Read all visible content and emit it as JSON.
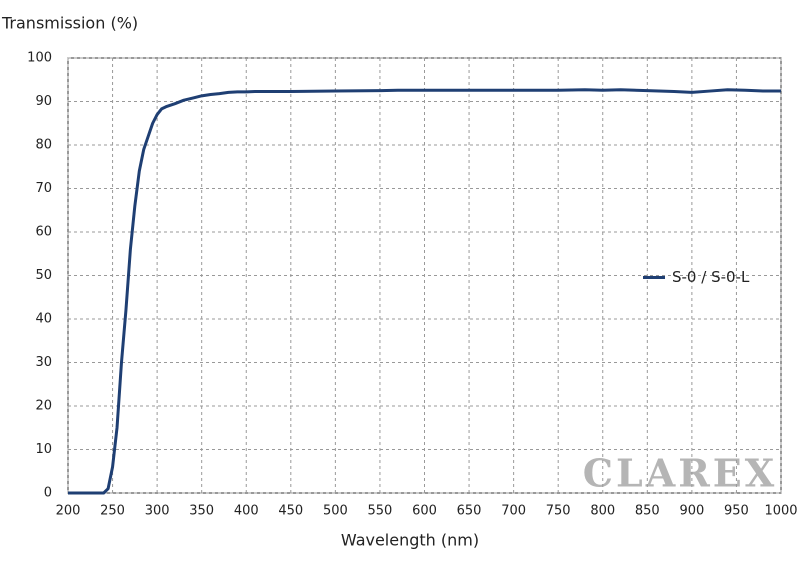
{
  "chart_data": {
    "type": "line",
    "y_label": "Transmission (%)",
    "x_label": "Wavelength (nm)",
    "watermark": "CLAREX",
    "x": [
      200,
      240,
      245,
      250,
      255,
      260,
      265,
      270,
      275,
      280,
      285,
      290,
      295,
      300,
      305,
      310,
      320,
      330,
      340,
      350,
      360,
      370,
      380,
      390,
      400,
      410,
      450,
      500,
      550,
      570,
      600,
      650,
      700,
      750,
      780,
      800,
      820,
      850,
      880,
      900,
      920,
      940,
      960,
      980,
      1000
    ],
    "series": [
      {
        "name": "S-0 / S-0-L",
        "color": "#1f3f73",
        "values": [
          0,
          0,
          1,
          6,
          15,
          30,
          42,
          56,
          66,
          74,
          79,
          82,
          85,
          87,
          88.3,
          88.8,
          89.5,
          90.3,
          90.8,
          91.3,
          91.6,
          91.8,
          92.1,
          92.2,
          92.2,
          92.3,
          92.3,
          92.4,
          92.5,
          92.6,
          92.6,
          92.6,
          92.6,
          92.6,
          92.7,
          92.6,
          92.7,
          92.5,
          92.3,
          92.1,
          92.4,
          92.7,
          92.6,
          92.4,
          92.4
        ]
      }
    ],
    "xlim": [
      200,
      1000
    ],
    "ylim": [
      0,
      100
    ],
    "xticks": [
      200,
      250,
      300,
      350,
      400,
      450,
      500,
      550,
      600,
      650,
      700,
      750,
      800,
      850,
      900,
      950,
      1000
    ],
    "yticks": [
      0,
      10,
      20,
      30,
      40,
      50,
      60,
      70,
      80,
      90,
      100
    ],
    "grid": true,
    "legend": "right"
  }
}
